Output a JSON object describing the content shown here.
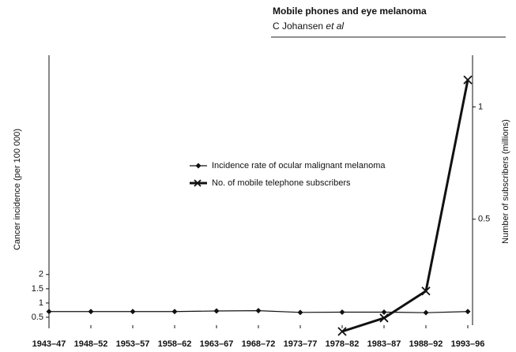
{
  "header": {
    "title": "Mobile phones and eye melanoma",
    "author": "C Johansen",
    "author_suffix": "et al"
  },
  "chart_data": {
    "type": "line",
    "categories": [
      "1943–47",
      "1948–52",
      "1953–57",
      "1958–62",
      "1963–67",
      "1968–72",
      "1973–77",
      "1978–82",
      "1983–87",
      "1988–92",
      "1993–96"
    ],
    "ylabel": "Cancer incidence (per 100 000)",
    "y2label": "Number of subscribers (millions)",
    "ylim": [
      0,
      9.7
    ],
    "yticks": [
      0.5,
      1.0,
      1.5,
      2.0
    ],
    "y2lim": [
      0,
      1.23
    ],
    "y2ticks": [
      0.5,
      1.0
    ],
    "series": [
      {
        "name": "Incidence rate of ocular malignant melanoma",
        "color": "#111",
        "marker": "diamond",
        "values": [
          0.7,
          0.7,
          0.7,
          0.7,
          0.72,
          0.73,
          0.67,
          0.68,
          0.68,
          0.66,
          0.7
        ]
      },
      {
        "name": "No. of mobile telephone subscribers",
        "color": "#111",
        "marker": "x",
        "axis": "y2",
        "values": [
          null,
          null,
          null,
          null,
          null,
          null,
          null,
          0,
          0.06,
          0.18,
          1.12
        ]
      }
    ]
  }
}
